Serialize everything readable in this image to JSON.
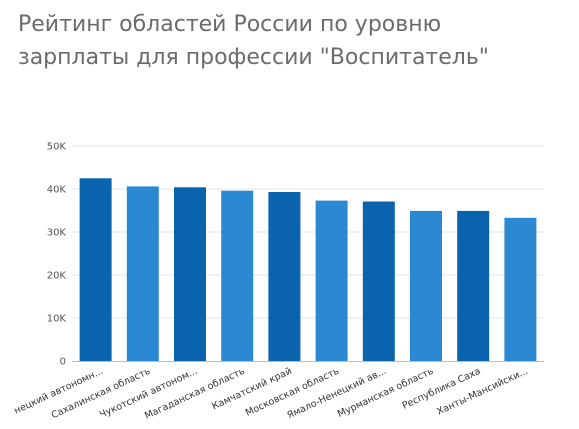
{
  "title": "Рейтинг областей России по уровню зарплаты для профессии \"Воспитатель\"",
  "colors": {
    "dark": "#0a64ad",
    "light": "#2b89d4",
    "grid": "#e6e6e6",
    "axis": "#bdbdbd"
  },
  "chart_data": {
    "type": "bar",
    "title": "Рейтинг областей России по уровню зарплаты для профессии \"Воспитатель\"",
    "categories": [
      "нецкий автономн...",
      "Сахалинская область",
      "Чукотский автоном...",
      "Магаданская область",
      "Камчатский край",
      "Московская область",
      "Ямало-Ненецкий ав...",
      "Мурманская область",
      "Республика Саха",
      "Ханты-Мансийски..."
    ],
    "values": [
      42500,
      40600,
      40400,
      39600,
      39300,
      37300,
      37100,
      34900,
      34900,
      33300
    ],
    "bar_shade": [
      "dark",
      "light",
      "dark",
      "light",
      "dark",
      "light",
      "dark",
      "light",
      "dark",
      "light"
    ],
    "ylim": [
      0,
      50000
    ],
    "yticks": [
      0,
      10000,
      20000,
      30000,
      40000,
      50000
    ],
    "ytick_labels": [
      "0",
      "10K",
      "20K",
      "30K",
      "40K",
      "50K"
    ],
    "xlabel": "",
    "ylabel": "",
    "grid": true,
    "legend": "none"
  }
}
